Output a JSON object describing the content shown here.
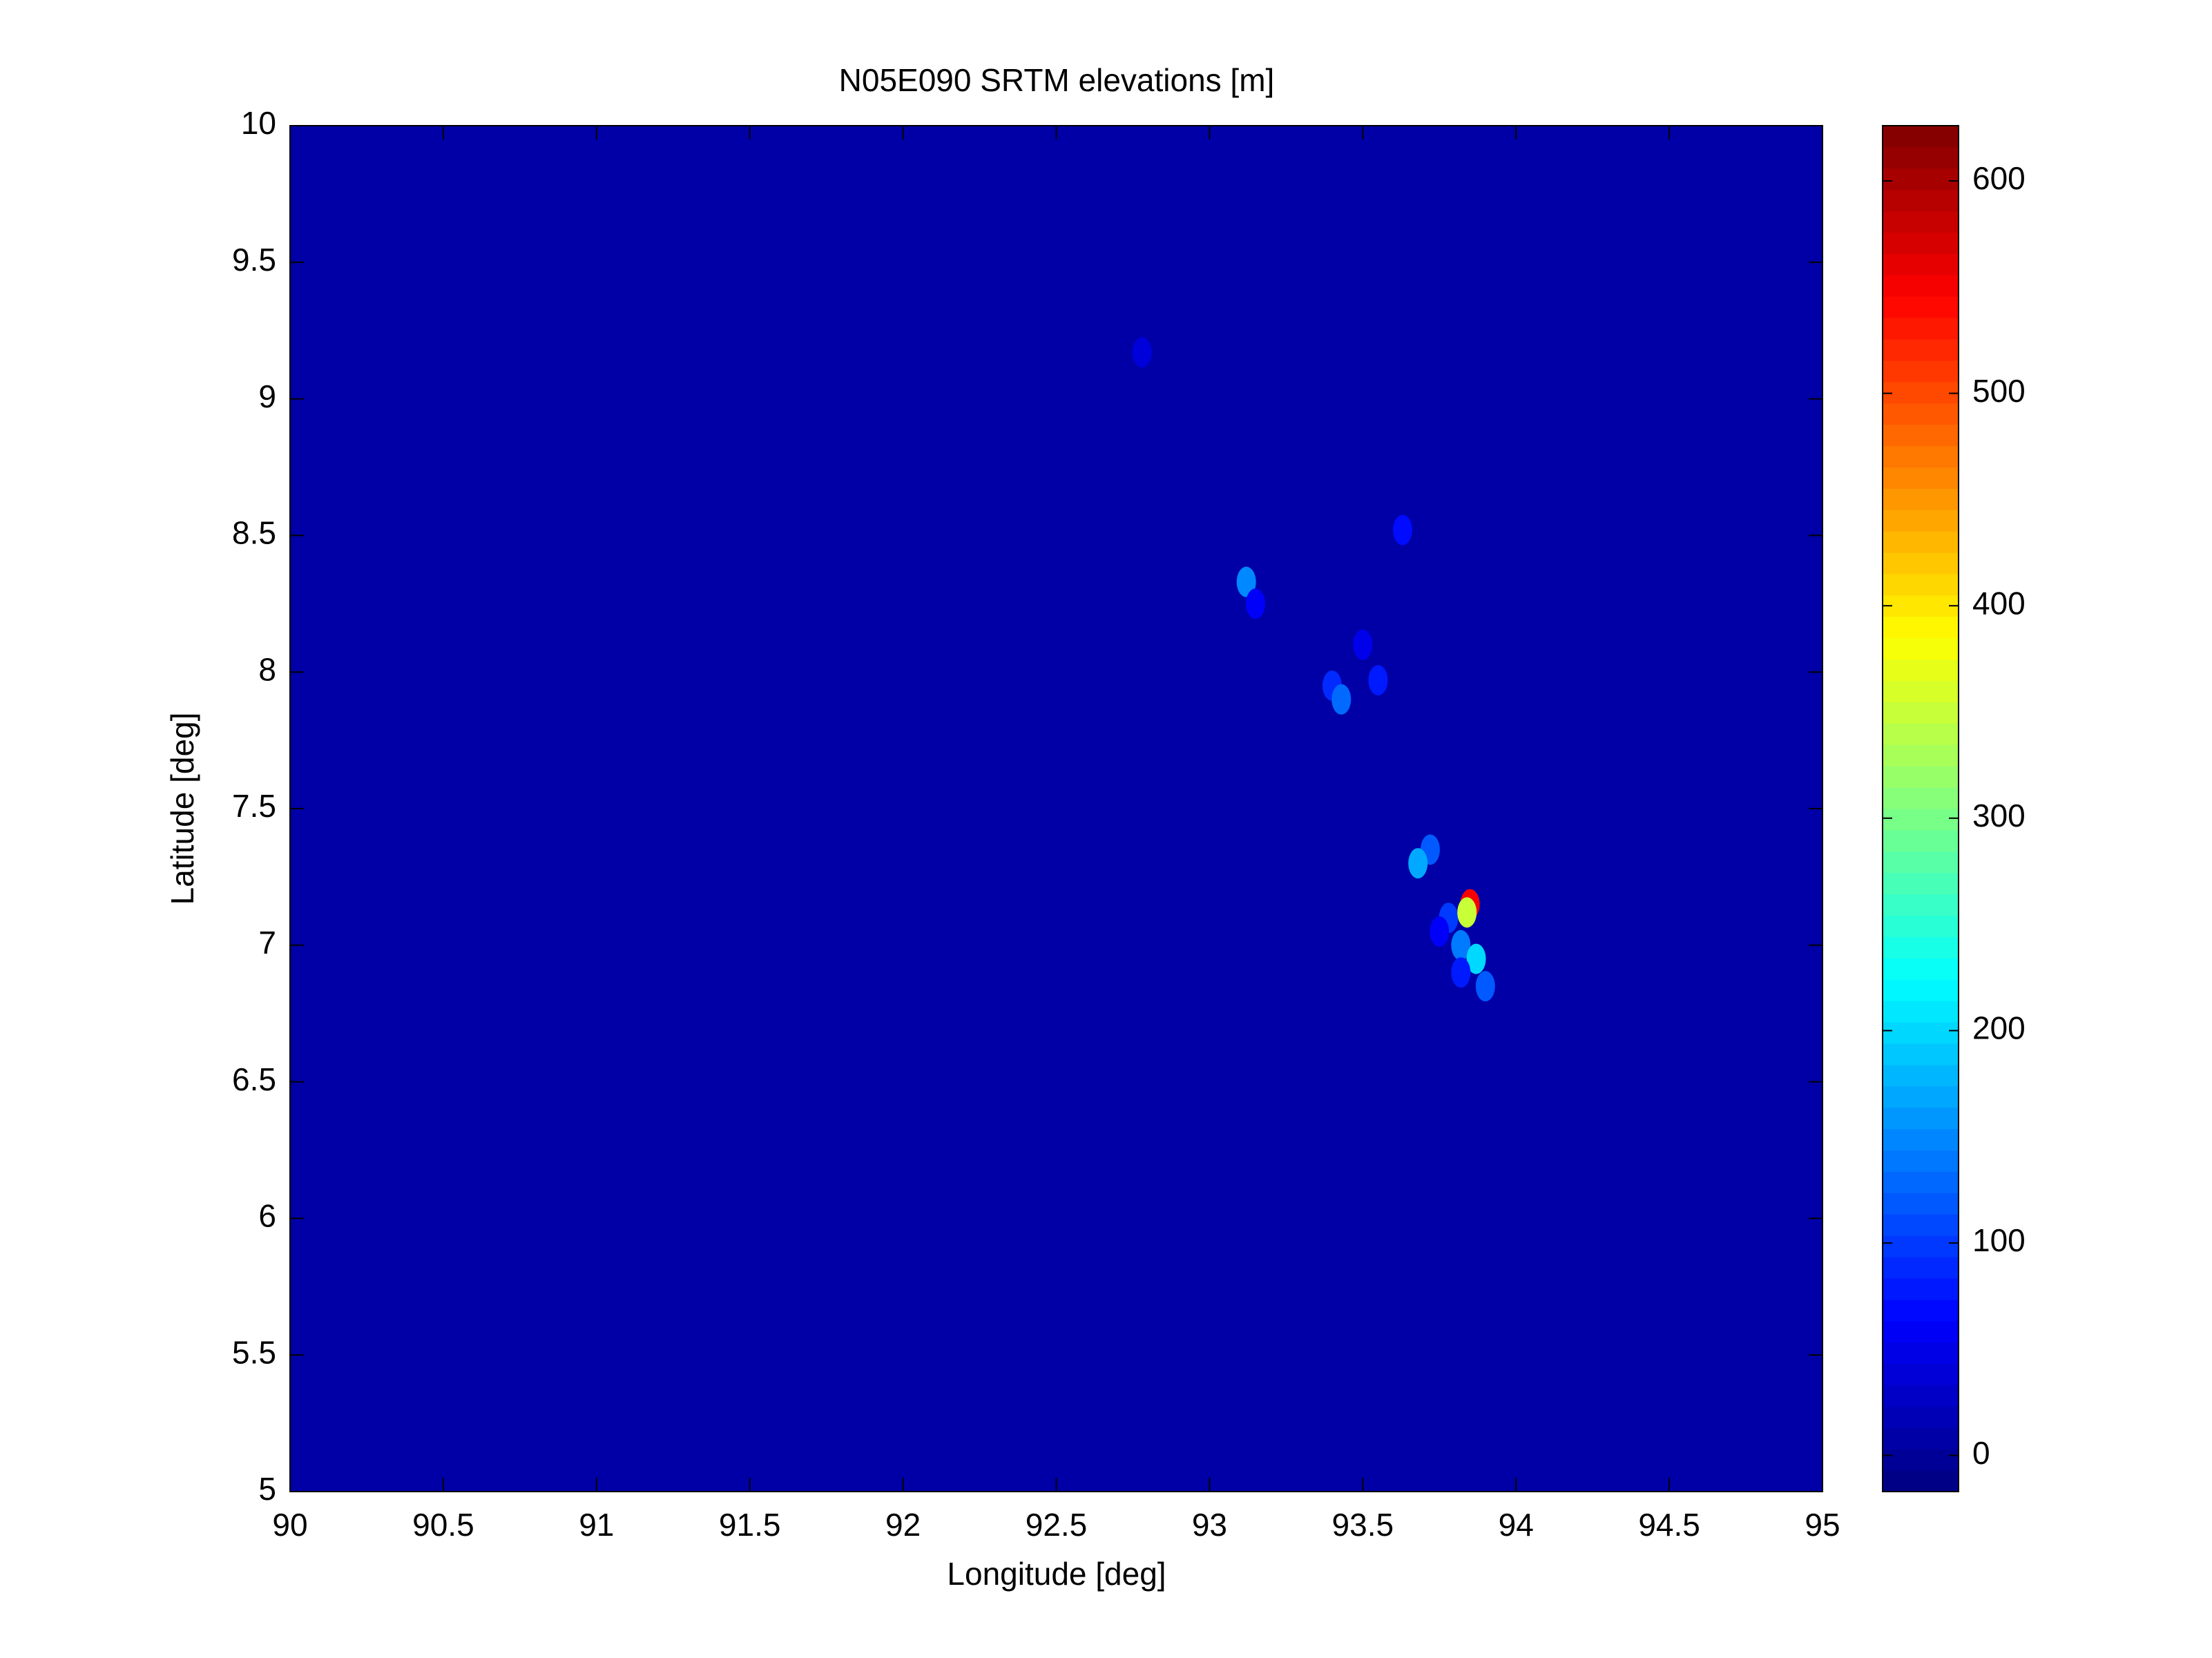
{
  "chart_data": {
    "type": "heatmap",
    "title": "N05E090 SRTM elevations [m]",
    "xlabel": "Longitude [deg]",
    "ylabel": "Latitude [deg]",
    "xlim": [
      90,
      95
    ],
    "xticks": [
      90,
      90.5,
      91,
      91.5,
      92,
      92.5,
      93,
      93.5,
      94,
      94.5,
      95
    ],
    "ylim": [
      5,
      10
    ],
    "yticks": [
      5,
      5.5,
      6,
      6.5,
      7,
      7.5,
      8,
      8.5,
      9,
      9.5,
      10
    ],
    "clim": [
      -17,
      626
    ],
    "cticks": [
      0,
      100,
      200,
      300,
      400,
      500,
      600
    ],
    "colormap": "jet",
    "x": [
      92.78,
      93.12,
      93.15,
      93.63,
      93.5,
      93.55,
      93.4,
      93.43,
      93.72,
      93.68,
      93.78,
      93.82,
      93.85,
      93.84,
      93.87,
      93.9,
      93.82,
      93.75
    ],
    "y": [
      9.17,
      8.33,
      8.25,
      8.52,
      8.1,
      7.97,
      7.95,
      7.9,
      7.35,
      7.3,
      7.1,
      7.0,
      7.15,
      7.12,
      6.95,
      6.85,
      6.9,
      7.05
    ],
    "values": [
      40,
      150,
      60,
      70,
      50,
      80,
      90,
      130,
      120,
      170,
      100,
      140,
      550,
      350,
      200,
      120,
      80,
      60
    ]
  }
}
